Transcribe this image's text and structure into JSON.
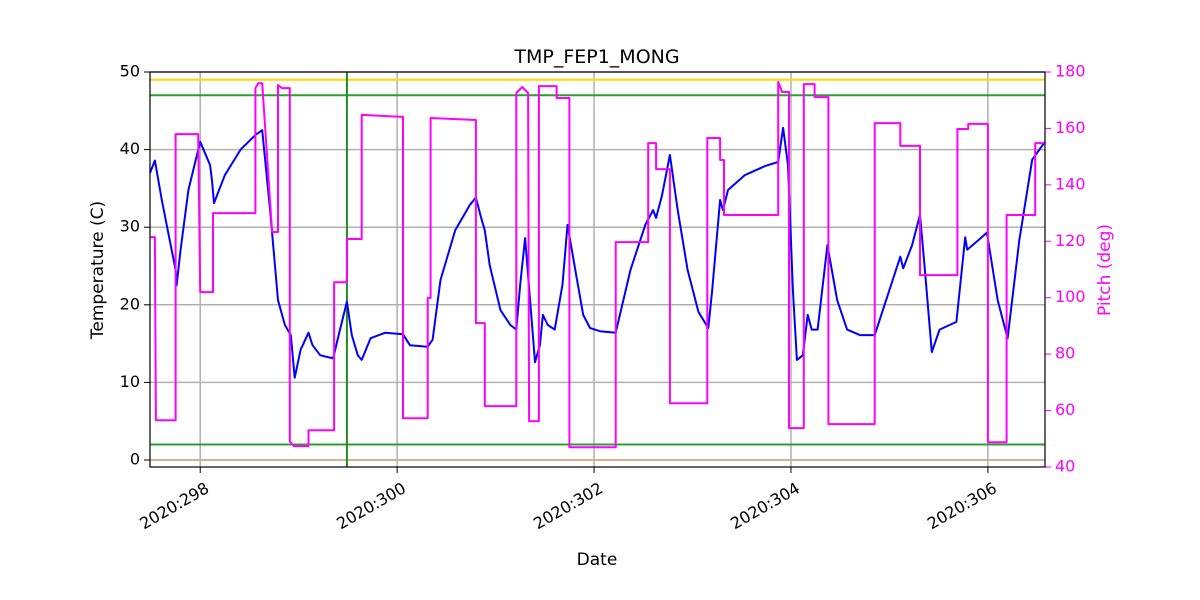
{
  "chart_data": {
    "type": "line",
    "title": "TMP_FEP1_MONG",
    "xlabel": "Date",
    "ylabel": "Temperature (C)",
    "y2label": "Pitch (deg)",
    "xlim": [
      297.49,
      306.58
    ],
    "xticks": [
      {
        "value": 298,
        "label": "2020:298"
      },
      {
        "value": 300,
        "label": "2020:300"
      },
      {
        "value": 302,
        "label": "2020:302"
      },
      {
        "value": 304,
        "label": "2020:304"
      },
      {
        "value": 306,
        "label": "2020:306"
      }
    ],
    "ylim": [
      -0.9,
      50
    ],
    "yticks": [
      0,
      10,
      20,
      30,
      40,
      50
    ],
    "y2lim": [
      40,
      180
    ],
    "y2ticks": [
      40,
      60,
      80,
      100,
      120,
      140,
      160,
      180
    ],
    "grid": true,
    "hlines": [
      {
        "value": 49,
        "color": "#ffd700"
      },
      {
        "value": 47,
        "color": "#2ca02c"
      },
      {
        "value": 2,
        "color": "#2ca02c"
      },
      {
        "value": 0,
        "color": "#d2b48c"
      }
    ],
    "vlines": [
      {
        "value": 299.49,
        "color": "#228b22"
      }
    ],
    "series": [
      {
        "name": "TMP_FEP1_MONG",
        "color": "#0000ff",
        "x": [
          297.49,
          297.54,
          297.61,
          297.7,
          297.75,
          297.76,
          297.8,
          297.88,
          298.0,
          298.1,
          298.12,
          298.14,
          298.25,
          298.41,
          298.56,
          298.63,
          298.71,
          298.79,
          298.86,
          298.92,
          298.96,
          299.02,
          299.1,
          299.14,
          299.22,
          299.35,
          299.42,
          299.49,
          299.54,
          299.6,
          299.64,
          299.73,
          299.88,
          300.06,
          300.13,
          300.31,
          300.36,
          300.44,
          300.59,
          300.74,
          300.8,
          300.86,
          300.89,
          300.94,
          301.05,
          301.15,
          301.21,
          301.25,
          301.3,
          301.35,
          301.4,
          301.45,
          301.48,
          301.53,
          301.6,
          301.68,
          301.73,
          301.81,
          301.89,
          301.96,
          302.06,
          302.22,
          302.37,
          302.52,
          302.6,
          302.63,
          302.69,
          302.77,
          302.85,
          302.95,
          303.06,
          303.16,
          303.2,
          303.28,
          303.31,
          303.36,
          303.53,
          303.74,
          303.87,
          303.92,
          303.97,
          304.02,
          304.06,
          304.12,
          304.17,
          304.21,
          304.27,
          304.37,
          304.47,
          304.57,
          304.7,
          304.85,
          305.0,
          305.11,
          305.14,
          305.23,
          305.31,
          305.36,
          305.43,
          305.51,
          305.68,
          305.77,
          305.79,
          305.91,
          305.99,
          306.1,
          306.2,
          306.32,
          306.45,
          306.58
        ],
        "values": [
          37,
          38.6,
          33.5,
          27.7,
          24.5,
          22.5,
          27,
          34.8,
          41,
          38,
          36,
          33.1,
          36.7,
          40,
          41.9,
          42.5,
          32.2,
          20.6,
          17.4,
          16.1,
          10.6,
          14.2,
          16.4,
          14.8,
          13.5,
          13.1,
          16.8,
          20.4,
          16.1,
          13.5,
          12.9,
          15.7,
          16.4,
          16.2,
          14.8,
          14.6,
          15.5,
          23.2,
          29.6,
          32.9,
          33.8,
          30.9,
          29.6,
          25.1,
          19.3,
          17.4,
          16.8,
          22.6,
          28.6,
          20.6,
          12.6,
          14.8,
          18.7,
          17.4,
          16.8,
          22.6,
          30.3,
          24.5,
          18.7,
          17,
          16.6,
          16.4,
          24.5,
          30.3,
          32.2,
          31.2,
          34.1,
          39.3,
          32.2,
          24.5,
          19.1,
          17,
          21.9,
          33.5,
          32.2,
          34.8,
          36.7,
          37.9,
          38.4,
          42.8,
          38,
          21.9,
          12.9,
          13.5,
          18.7,
          16.8,
          16.8,
          27.7,
          20.6,
          16.8,
          16.1,
          16.1,
          21.9,
          26.2,
          24.7,
          27.7,
          31.6,
          24.5,
          13.9,
          16.8,
          17.8,
          28.7,
          27.1,
          28.4,
          29.3,
          20.6,
          15.7,
          28.4,
          38.7,
          41
        ]
      },
      {
        "name": "Pitch",
        "color": "#ff00ff",
        "axis": "y2",
        "x": [
          297.49,
          297.54,
          297.55,
          297.75,
          297.75,
          297.98,
          298.0,
          298.13,
          298.13,
          298.56,
          298.56,
          298.59,
          298.63,
          298.73,
          298.79,
          298.79,
          298.83,
          298.91,
          298.91,
          298.95,
          299.1,
          299.1,
          299.36,
          299.36,
          299.49,
          299.49,
          299.64,
          299.64,
          300.06,
          300.06,
          300.31,
          300.31,
          300.34,
          300.34,
          300.8,
          300.8,
          300.89,
          300.89,
          301.21,
          301.21,
          301.27,
          301.33,
          301.34,
          301.44,
          301.44,
          301.62,
          301.62,
          301.75,
          301.75,
          302.22,
          302.22,
          302.55,
          302.55,
          302.63,
          302.63,
          302.77,
          302.77,
          303.15,
          303.15,
          303.28,
          303.28,
          303.32,
          303.32,
          303.87,
          303.87,
          303.91,
          303.98,
          303.98,
          304.13,
          304.13,
          304.24,
          304.24,
          304.38,
          304.38,
          304.85,
          304.85,
          305.11,
          305.11,
          305.31,
          305.31,
          305.69,
          305.69,
          305.8,
          305.8,
          306.0,
          306.0,
          306.19,
          306.19,
          306.48,
          306.48,
          306.58
        ],
        "values": [
          121.5,
          121.5,
          56.6,
          56.6,
          158,
          158,
          102,
          102,
          130,
          130,
          174.3,
          176,
          176,
          123.3,
          123.3,
          175.4,
          174.3,
          174.3,
          49.1,
          47.4,
          47.4,
          53,
          53,
          105.5,
          105.5,
          120.8,
          120.8,
          164.8,
          164.1,
          57.3,
          57.3,
          99.9,
          99.9,
          163.7,
          163,
          91,
          91,
          61.6,
          61.6,
          172.6,
          174.7,
          172.6,
          56.2,
          56.2,
          175,
          175,
          170.8,
          170.8,
          47,
          47,
          119.7,
          119.7,
          154.8,
          154.8,
          145.6,
          145.6,
          62.6,
          62.6,
          156.6,
          156.6,
          148.8,
          148.8,
          129.3,
          129.3,
          176.5,
          172.9,
          172.9,
          53.8,
          53.8,
          175.7,
          175.7,
          171.1,
          171.1,
          55.2,
          55.2,
          161.9,
          161.9,
          153.8,
          153.8,
          108,
          108,
          159.8,
          159.8,
          161.6,
          161.6,
          48.8,
          48.8,
          129.3,
          129.3,
          154.8,
          154.8
        ]
      }
    ]
  }
}
